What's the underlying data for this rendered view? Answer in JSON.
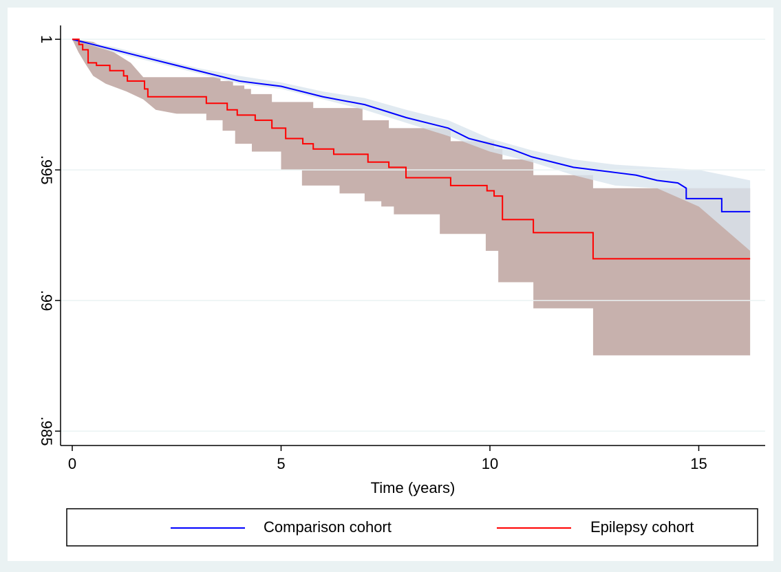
{
  "chart_data": {
    "type": "line",
    "xlabel": "Time (years)",
    "xlim": [
      -0.28,
      16.59
    ],
    "ylim": [
      0.98445,
      1.00053
    ],
    "xticks": [
      0,
      5,
      10,
      15
    ],
    "yticks": [
      {
        "value": 0.985,
        "label": ".985"
      },
      {
        "value": 0.99,
        "label": ".99"
      },
      {
        "value": 0.995,
        "label": ".995"
      },
      1
    ],
    "grid": true,
    "legend": "bottom",
    "series": [
      {
        "name": "Comparison cohort",
        "color": "#0000ff",
        "x": [
          0,
          1,
          2,
          3,
          4,
          5,
          6,
          7,
          8,
          9,
          9.5,
          10,
          10.5,
          11,
          11.5,
          12,
          13,
          13.5,
          14,
          14.5,
          14.7,
          14.7,
          15.55,
          15.55,
          16.23
        ],
        "values": [
          1,
          0.9996,
          0.9992,
          0.9988,
          0.9984,
          0.9982,
          0.9978,
          0.9975,
          0.997,
          0.9966,
          0.9962,
          0.996,
          0.9958,
          0.9955,
          0.9953,
          0.9951,
          0.9949,
          0.9948,
          0.9946,
          0.9945,
          0.9943,
          0.9939,
          0.9939,
          0.9934,
          0.9934
        ],
        "band": {
          "color": "#d9e5ee",
          "x_upper": [
            0,
            1,
            2,
            3,
            4,
            5,
            6,
            7,
            8,
            9,
            10,
            11,
            12,
            13,
            14,
            15,
            16.23
          ],
          "upper": [
            1,
            0.9997,
            0.9993,
            0.9989,
            0.9986,
            0.99835,
            0.998,
            0.99775,
            0.9973,
            0.9969,
            0.9962,
            0.99575,
            0.9954,
            0.9952,
            0.9951,
            0.995,
            0.9946
          ],
          "x_lower": [
            0,
            1,
            2,
            3,
            4,
            5,
            6,
            7,
            8,
            9,
            10,
            11,
            12,
            13,
            14,
            15,
            16.23
          ],
          "lower": [
            1,
            0.9995,
            0.9991,
            0.9987,
            0.9983,
            0.9981,
            0.9977,
            0.9973,
            0.9968,
            0.9963,
            0.9957,
            0.9953,
            0.9948,
            0.9944,
            0.9943,
            0.9936,
            0.9919
          ]
        }
      },
      {
        "name": "Epilepsy cohort",
        "color": "#ff0000",
        "x": [
          0,
          0.16,
          0.16,
          0.25,
          0.25,
          0.38,
          0.38,
          0.58,
          0.58,
          0.9,
          0.9,
          1.23,
          1.23,
          1.32,
          1.32,
          1.73,
          1.73,
          1.81,
          1.81,
          3.21,
          3.21,
          3.71,
          3.71,
          3.95,
          3.95,
          4.38,
          4.38,
          4.78,
          4.78,
          5.11,
          5.11,
          5.52,
          5.52,
          5.77,
          5.77,
          6.26,
          6.26,
          7.08,
          7.08,
          7.58,
          7.58,
          7.99,
          7.99,
          9.06,
          9.06,
          9.93,
          9.93,
          10.1,
          10.1,
          10.3,
          10.3,
          11.04,
          11.04,
          12.47,
          12.47,
          16.23
        ],
        "values": [
          1,
          1,
          0.9998,
          0.9998,
          0.9996,
          0.9996,
          0.9991,
          0.9991,
          0.999,
          0.999,
          0.9988,
          0.9988,
          0.9986,
          0.9986,
          0.9984,
          0.9984,
          0.9981,
          0.9981,
          0.9978,
          0.9978,
          0.99755,
          0.99755,
          0.9973,
          0.9973,
          0.9971,
          0.9971,
          0.9969,
          0.9969,
          0.9966,
          0.9966,
          0.9962,
          0.9962,
          0.996,
          0.996,
          0.9958,
          0.9958,
          0.9956,
          0.9956,
          0.9953,
          0.9953,
          0.9951,
          0.9951,
          0.9947,
          0.9947,
          0.9944,
          0.9944,
          0.9942,
          0.9942,
          0.994,
          0.994,
          0.9931,
          0.9931,
          0.9926,
          0.9926,
          0.9916,
          0.9916
        ],
        "band": {
          "color": "#c7b1ad",
          "x_upper": [
            0,
            0.5,
            1,
            1.4,
            1.7,
            3.55,
            3.55,
            3.85,
            3.85,
            4.12,
            4.12,
            4.28,
            4.28,
            4.78,
            4.78,
            5.77,
            5.77,
            6.95,
            6.95,
            7.58,
            7.58,
            9.06,
            9.06,
            10.1,
            10.1,
            10.3,
            10.3,
            11.04,
            11.04,
            12.47,
            12.47,
            16.23
          ],
          "upper": [
            1,
            0.9999,
            0.9995,
            0.9991,
            0.99855,
            0.99855,
            0.9984,
            0.9984,
            0.99823,
            0.99823,
            0.9981,
            0.9981,
            0.9979,
            0.9979,
            0.9976,
            0.9976,
            0.99737,
            0.99737,
            0.9969,
            0.9969,
            0.9966,
            0.9966,
            0.9961,
            0.9961,
            0.9958,
            0.9958,
            0.9954,
            0.9954,
            0.9948,
            0.9948,
            0.9943,
            0.9943
          ],
          "x_lower": [
            0,
            0.15,
            0.3,
            0.5,
            0.8,
            1.3,
            1.7,
            2,
            2.5,
            3.21,
            3.21,
            3.6,
            3.6,
            3.9,
            3.9,
            4.3,
            4.3,
            5,
            5,
            5.5,
            5.5,
            6.4,
            6.4,
            7,
            7,
            7.4,
            7.4,
            7.7,
            7.7,
            8.8,
            8.8,
            9.9,
            9.9,
            10.2,
            10.2,
            11.04,
            11.04,
            12.47,
            12.47,
            16.23
          ],
          "lower": [
            1,
            0.9995,
            0.9991,
            0.9986,
            0.9983,
            0.998,
            0.9977,
            0.9973,
            0.99715,
            0.99715,
            0.9969,
            0.9969,
            0.9965,
            0.9965,
            0.996,
            0.996,
            0.9957,
            0.9957,
            0.995,
            0.995,
            0.9944,
            0.9944,
            0.9941,
            0.9941,
            0.9938,
            0.9938,
            0.9936,
            0.9936,
            0.9933,
            0.9933,
            0.99255,
            0.99255,
            0.9919,
            0.9919,
            0.9907,
            0.9907,
            0.9897,
            0.9897,
            0.9879,
            0.9879
          ]
        }
      }
    ]
  }
}
